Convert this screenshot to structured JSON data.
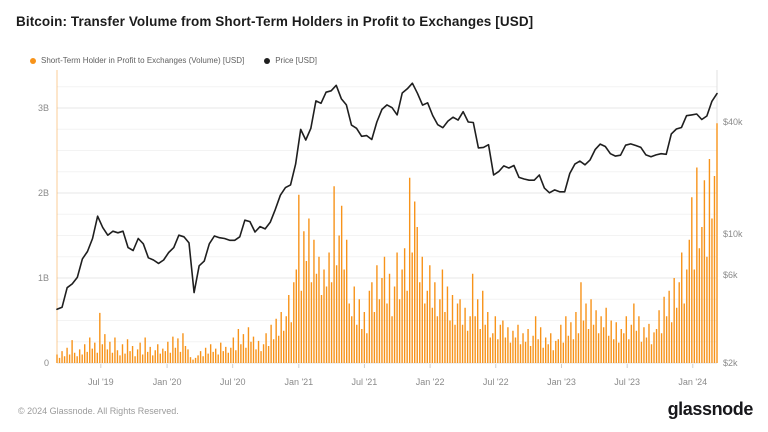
{
  "header": {
    "title": "Bitcoin: Transfer Volume from Short-Term Holders in Profit to Exchanges [USD]"
  },
  "legend": [
    {
      "label": "Short-Term Holder in Profit to Exchanges (Volume) [USD]",
      "color": "#f7931a"
    },
    {
      "label": "Price [USD]",
      "color": "#1f1f1f"
    }
  ],
  "footer": {
    "copyright": "© 2024 Glassnode. All Rights Reserved.",
    "brand": "glassnode"
  },
  "chart_data": {
    "type": "bar+line",
    "title": "Bitcoin: Transfer Volume from Short-Term Holders in Profit to Exchanges [USD]",
    "x_range": [
      "Mar 2019",
      "Mar 2024"
    ],
    "grid": true,
    "x_ticks": [
      {
        "label": "Jul '19",
        "f": 0.0664
      },
      {
        "label": "Jan '20",
        "f": 0.1668
      },
      {
        "label": "Jul '20",
        "f": 0.2662
      },
      {
        "label": "Jan '21",
        "f": 0.3664
      },
      {
        "label": "Jul '21",
        "f": 0.4658
      },
      {
        "label": "Jan '22",
        "f": 0.5653
      },
      {
        "label": "Jul '22",
        "f": 0.6648
      },
      {
        "label": "Jan '23",
        "f": 0.7644
      },
      {
        "label": "Jul '23",
        "f": 0.8639
      },
      {
        "label": "Jan '24",
        "f": 0.9633
      }
    ],
    "y_left": {
      "unit": "USD (billions)",
      "scale": "linear",
      "range": [
        0,
        3.45
      ],
      "ticks": [
        {
          "label": "0",
          "value": 0
        },
        {
          "label": "1B",
          "value": 1
        },
        {
          "label": "2B",
          "value": 2
        },
        {
          "label": "3B",
          "value": 3
        }
      ],
      "minor_step": 0.25
    },
    "y_right": {
      "unit": "USD",
      "scale": "log",
      "range": [
        2000,
        77000
      ],
      "ticks": [
        {
          "label": "$2k",
          "value": 2
        },
        {
          "label": "$6k",
          "value": 6
        },
        {
          "label": "$10k",
          "value": 10
        },
        {
          "label": "$40k",
          "value": 40
        }
      ]
    },
    "series": [
      {
        "name": "Short-Term Holder in Profit to Exchanges (Volume) [USD]",
        "type": "bar",
        "axis": "left",
        "color": "#f7931a",
        "cadence": "weekly",
        "values_billions": [
          0.1,
          0.06,
          0.14,
          0.08,
          0.18,
          0.1,
          0.27,
          0.12,
          0.08,
          0.16,
          0.1,
          0.22,
          0.13,
          0.3,
          0.17,
          0.24,
          0.12,
          0.59,
          0.22,
          0.34,
          0.16,
          0.25,
          0.12,
          0.3,
          0.15,
          0.09,
          0.22,
          0.11,
          0.28,
          0.14,
          0.2,
          0.08,
          0.16,
          0.24,
          0.1,
          0.3,
          0.13,
          0.19,
          0.09,
          0.15,
          0.22,
          0.11,
          0.17,
          0.14,
          0.25,
          0.12,
          0.31,
          0.18,
          0.29,
          0.13,
          0.35,
          0.2,
          0.16,
          0.07,
          0.04,
          0.06,
          0.09,
          0.14,
          0.08,
          0.18,
          0.11,
          0.22,
          0.13,
          0.17,
          0.1,
          0.24,
          0.14,
          0.19,
          0.12,
          0.18,
          0.3,
          0.15,
          0.4,
          0.22,
          0.34,
          0.18,
          0.42,
          0.25,
          0.31,
          0.16,
          0.26,
          0.14,
          0.22,
          0.35,
          0.2,
          0.45,
          0.28,
          0.52,
          0.32,
          0.6,
          0.38,
          0.55,
          0.8,
          0.48,
          0.95,
          1.1,
          1.98,
          0.85,
          1.55,
          1.2,
          1.7,
          0.95,
          1.45,
          1.05,
          1.25,
          0.8,
          1.1,
          0.9,
          1.3,
          0.95,
          2.08,
          1.15,
          1.5,
          1.85,
          1.1,
          1.45,
          0.7,
          0.55,
          0.9,
          0.45,
          0.75,
          0.4,
          0.6,
          0.35,
          0.85,
          0.95,
          0.6,
          1.15,
          0.75,
          1.0,
          1.25,
          0.7,
          1.05,
          0.55,
          0.9,
          1.3,
          0.75,
          1.1,
          1.35,
          0.85,
          2.18,
          1.3,
          1.9,
          1.6,
          0.95,
          1.25,
          0.7,
          0.85,
          1.15,
          0.65,
          0.95,
          0.55,
          0.75,
          1.1,
          0.6,
          0.9,
          0.5,
          0.8,
          0.45,
          0.7,
          0.75,
          0.45,
          0.65,
          0.38,
          0.55,
          1.05,
          0.55,
          0.75,
          0.4,
          0.85,
          0.45,
          0.6,
          0.3,
          0.35,
          0.55,
          0.28,
          0.45,
          0.5,
          0.3,
          0.42,
          0.24,
          0.38,
          0.3,
          0.45,
          0.22,
          0.35,
          0.25,
          0.4,
          0.2,
          0.32,
          0.55,
          0.28,
          0.42,
          0.18,
          0.3,
          0.22,
          0.35,
          0.15,
          0.26,
          0.28,
          0.45,
          0.24,
          0.55,
          0.32,
          0.48,
          0.28,
          0.6,
          0.35,
          0.95,
          0.5,
          0.7,
          0.4,
          0.75,
          0.45,
          0.62,
          0.35,
          0.55,
          0.42,
          0.65,
          0.32,
          0.5,
          0.28,
          0.48,
          0.24,
          0.4,
          0.35,
          0.55,
          0.28,
          0.45,
          0.7,
          0.38,
          0.55,
          0.25,
          0.42,
          0.3,
          0.46,
          0.22,
          0.36,
          0.4,
          0.62,
          0.35,
          0.78,
          0.55,
          0.85,
          0.48,
          1.0,
          0.65,
          0.95,
          1.3,
          0.7,
          1.1,
          1.45,
          1.95,
          1.1,
          2.3,
          1.35,
          1.6,
          2.15,
          1.25,
          2.4,
          1.7,
          2.2,
          2.82
        ]
      },
      {
        "name": "Price [USD]",
        "type": "line",
        "axis": "right",
        "color": "#1f1f1f",
        "cadence": "biweekly",
        "values_usd_k": [
          3.9,
          4.0,
          5.1,
          5.35,
          5.8,
          7.3,
          8.0,
          9.4,
          12.4,
          10.8,
          9.8,
          10.3,
          10.1,
          10.3,
          8.4,
          8.1,
          9.4,
          8.8,
          7.4,
          7.2,
          6.9,
          7.2,
          7.9,
          8.4,
          9.8,
          9.6,
          8.9,
          4.8,
          6.7,
          7.1,
          8.8,
          9.7,
          9.5,
          9.4,
          9.2,
          9.2,
          9.6,
          11.8,
          11.6,
          10.2,
          10.9,
          10.6,
          11.5,
          13.5,
          16.1,
          17.7,
          18.3,
          23.7,
          36.5,
          32.0,
          37.0,
          52.0,
          50.5,
          58.0,
          59.0,
          63.2,
          53.5,
          49.5,
          38.5,
          37.0,
          33.5,
          33.8,
          32.2,
          40.0,
          46.8,
          49.5,
          47.8,
          43.7,
          57.4,
          60.5,
          64.8,
          57.2,
          49.4,
          50.8,
          43.4,
          38.7,
          37.3,
          40.5,
          42.5,
          41.0,
          45.5,
          40.0,
          39.8,
          29.0,
          29.2,
          30.2,
          20.7,
          21.6,
          23.2,
          22.6,
          23.3,
          20.1,
          19.7,
          19.4,
          19.4,
          20.7,
          17.6,
          16.6,
          17.2,
          16.8,
          16.8,
          21.1,
          23.7,
          24.6,
          23.5,
          25.0,
          28.4,
          30.4,
          29.5,
          27.0,
          26.2,
          26.5,
          30.0,
          30.5,
          29.9,
          29.2,
          26.6,
          26.0,
          26.6,
          27.0,
          26.8,
          34.5,
          36.7,
          37.4,
          43.3,
          43.7,
          44.2,
          41.3,
          43.1,
          51.8,
          57.0
        ]
      }
    ]
  }
}
